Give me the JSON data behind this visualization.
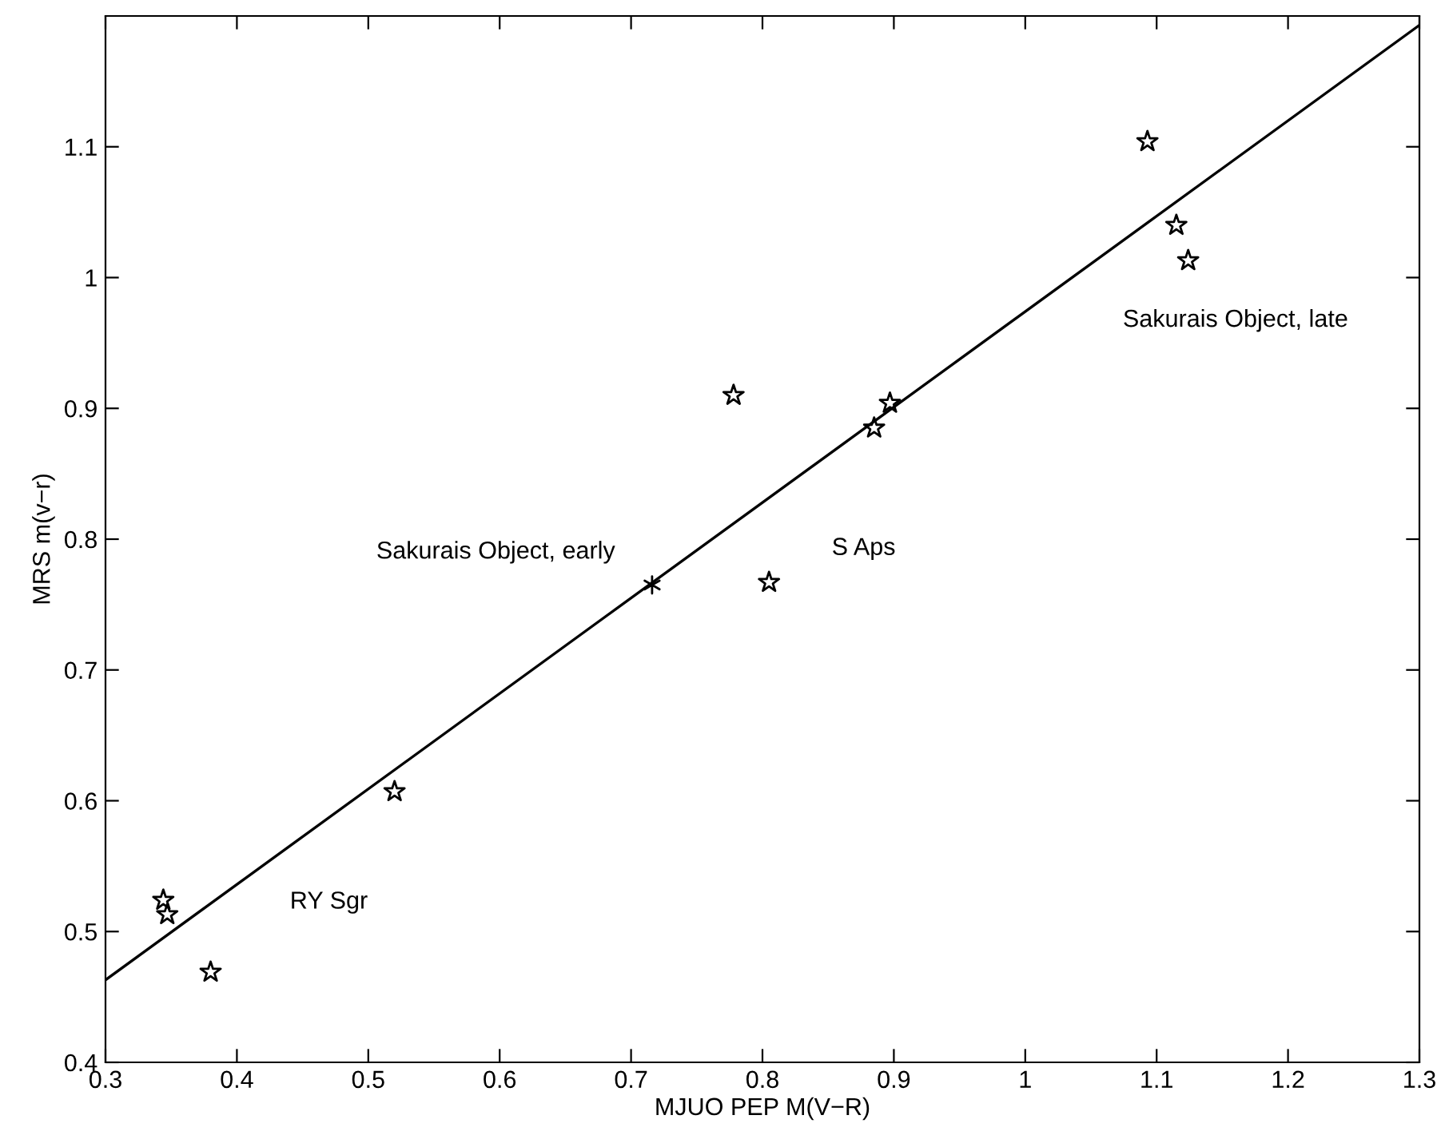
{
  "chart_data": {
    "type": "scatter",
    "xlabel": "MJUO PEP M(V−R)",
    "ylabel": "MRS m(v−r)",
    "xlim": [
      0.3,
      1.3
    ],
    "xticks": [
      0.3,
      0.4,
      0.5,
      0.6,
      0.7,
      0.8,
      0.9,
      1,
      1.1,
      1.2,
      1.3
    ],
    "ylim": [
      0.4,
      1.2
    ],
    "yticks": [
      0.4,
      0.5,
      0.6,
      0.7,
      0.8,
      0.9,
      1,
      1.1
    ],
    "grid": false,
    "legend": false,
    "series": [
      {
        "marker": "star",
        "color": "#000000",
        "x": [
          0.344,
          0.347,
          0.38,
          0.52,
          0.778,
          0.805,
          0.885,
          0.897,
          1.093,
          1.115,
          1.124
        ],
        "values": [
          0.524,
          0.513,
          0.469,
          0.607,
          0.91,
          0.767,
          0.885,
          0.904,
          1.104,
          1.04,
          1.013
        ]
      },
      {
        "marker": "cross",
        "color": "#000000",
        "x": [
          0.716
        ],
        "values": [
          0.765
        ]
      },
      {
        "type": "line",
        "marker": "none",
        "line_style": "solid",
        "color": "#000000",
        "x": [
          0.3,
          1.3
        ],
        "values": [
          0.463,
          1.193
        ]
      }
    ],
    "annotations": [
      "RY Sgr",
      "Sakurais Object, early",
      "S Aps",
      "Sakurais Object, late"
    ]
  }
}
